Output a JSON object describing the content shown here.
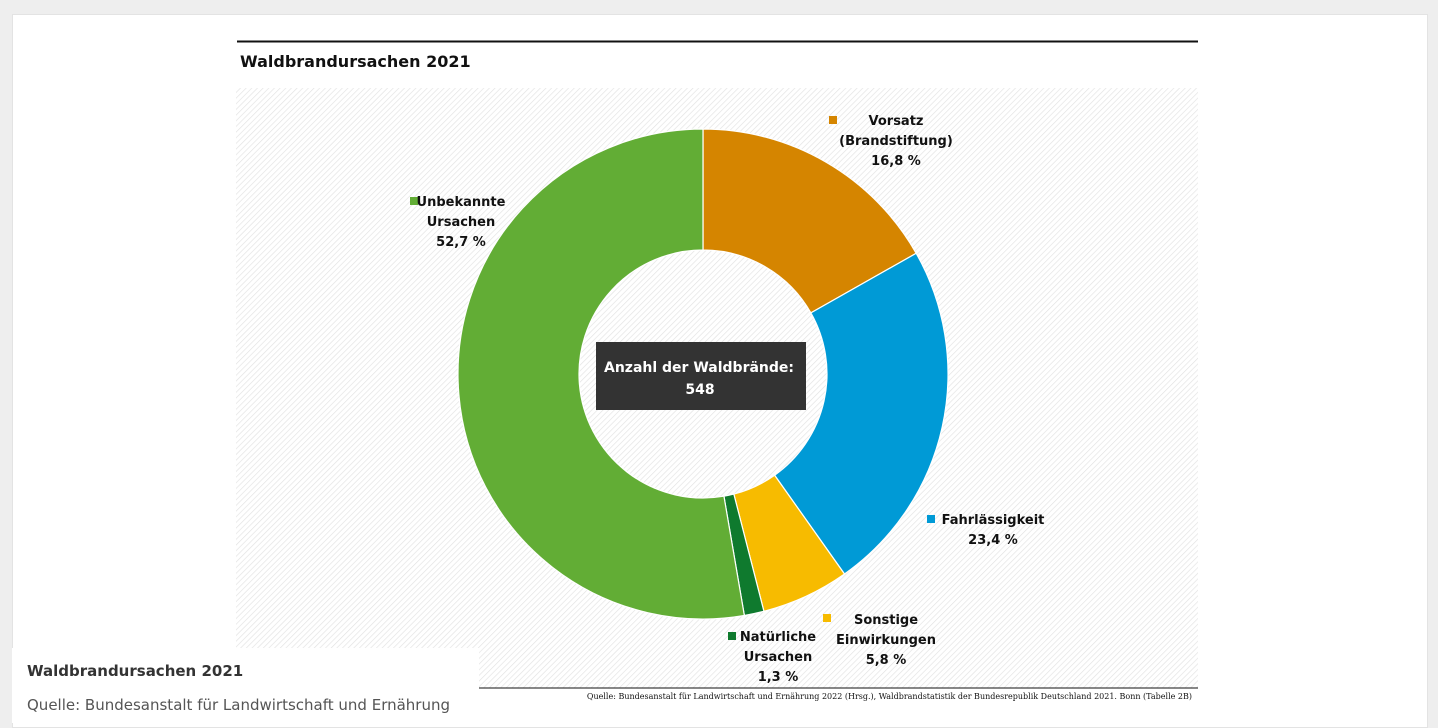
{
  "chart_data": {
    "type": "pie",
    "variant": "donut",
    "title": "Waldbrandursachen 2021",
    "center_label": "Anzahl der Waldbrände:",
    "center_value": "548",
    "slices": [
      {
        "key": "vorsatz",
        "lines": [
          "Vorsatz",
          "(Brandstiftung)"
        ],
        "value": 16.8,
        "value_label": "16,8 %",
        "color": "#d58500"
      },
      {
        "key": "fahrlaessigkeit",
        "lines": [
          "Fahrlässigkeit"
        ],
        "value": 23.4,
        "value_label": "23,4 %",
        "color": "#009ad6"
      },
      {
        "key": "sonstige",
        "lines": [
          "Sonstige",
          "Einwirkungen"
        ],
        "value": 5.8,
        "value_label": "5,8 %",
        "color": "#f7bb00"
      },
      {
        "key": "natuerliche",
        "lines": [
          "Natürliche",
          "Ursachen"
        ],
        "value": 1.3,
        "value_label": "1,3 %",
        "color": "#0f7a2e"
      },
      {
        "key": "unbekannte",
        "lines": [
          "Unbekannte",
          "Ursachen"
        ],
        "value": 52.7,
        "value_label": "52,7 %",
        "color": "#62ad35"
      }
    ],
    "source": "Quelle: Bundesanstalt für Landwirtschaft und Ernährung 2022 (Hrsg.), Waldbrandstatistik der Bundesrepublik Deutschland 2021. Bonn (Tabelle 2B)"
  },
  "caption": {
    "title": "Waldbrandursachen 2021",
    "source": "Quelle: Bundesanstalt für Landwirtschaft und Ernährung"
  }
}
